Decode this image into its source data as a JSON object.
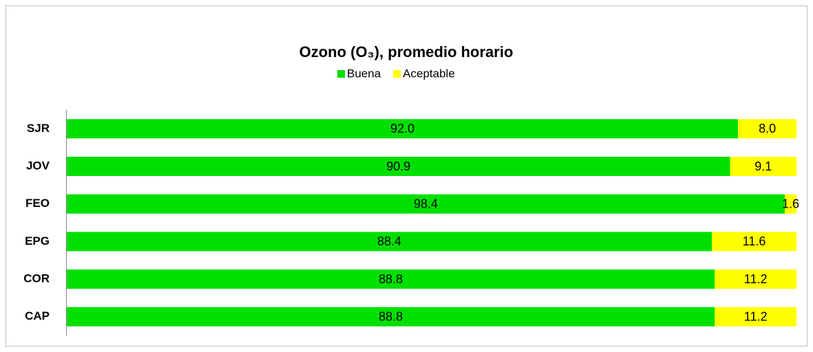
{
  "chart_data": {
    "type": "bar",
    "orientation": "horizontal",
    "stacked": true,
    "title": "Ozono (O₃), promedio horario",
    "categories": [
      "SJR",
      "JOV",
      "FEO",
      "EPG",
      "COR",
      "CAP"
    ],
    "series": [
      {
        "name": "Buena",
        "color": "#00e000",
        "values": [
          92.0,
          90.9,
          98.4,
          88.4,
          88.8,
          88.8
        ],
        "value_labels": [
          "92.0",
          "90.9",
          "98.4",
          "88.4",
          "88.8",
          "88.8"
        ]
      },
      {
        "name": "Aceptable",
        "color": "#ffff00",
        "values": [
          8.0,
          9.1,
          1.6,
          11.6,
          11.2,
          11.2
        ],
        "value_labels": [
          "8.0",
          "9.1",
          "1.6",
          "11.6",
          "11.2",
          "11.2"
        ]
      }
    ],
    "legend": "top"
  }
}
